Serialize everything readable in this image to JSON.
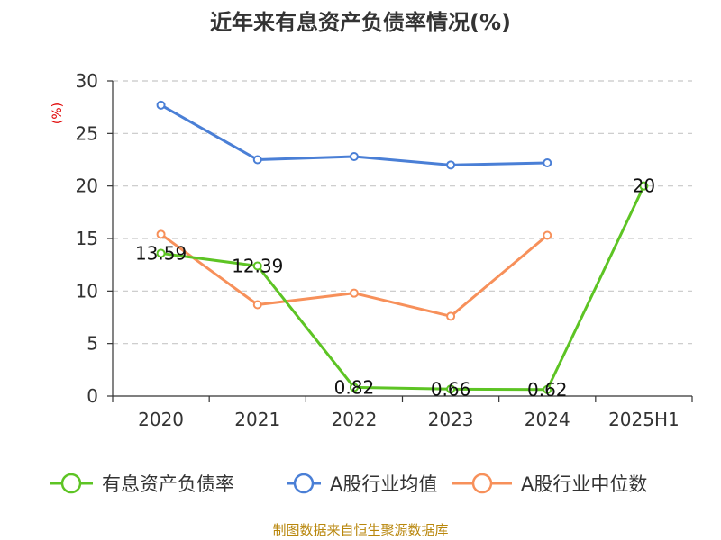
{
  "chart_data": {
    "type": "line",
    "title": "近年来有息资产负债率情况(%)",
    "unit_label": "(%)",
    "categories": [
      "2020",
      "2021",
      "2022",
      "2023",
      "2024",
      "2025H1"
    ],
    "ylim": [
      0,
      30
    ],
    "yticks": [
      0,
      5,
      10,
      15,
      20,
      25,
      30
    ],
    "grid": true,
    "legend_position": "bottom",
    "series": [
      {
        "name": "有息资产负债率",
        "color": "#5dc424",
        "values": [
          13.59,
          12.39,
          0.82,
          0.66,
          0.62,
          20
        ],
        "labels": [
          "13.59",
          "12.39",
          "0.82",
          "0.66",
          "0.62",
          "20"
        ],
        "show_labels": true
      },
      {
        "name": "A股行业均值",
        "color": "#4a7fd6",
        "values": [
          27.7,
          22.5,
          22.8,
          22.0,
          22.2,
          null
        ],
        "show_labels": false
      },
      {
        "name": "A股行业中位数",
        "color": "#f7905a",
        "values": [
          15.4,
          8.7,
          9.8,
          7.6,
          15.3,
          null
        ],
        "show_labels": false
      }
    ],
    "source": "制图数据来自恒生聚源数据库"
  }
}
